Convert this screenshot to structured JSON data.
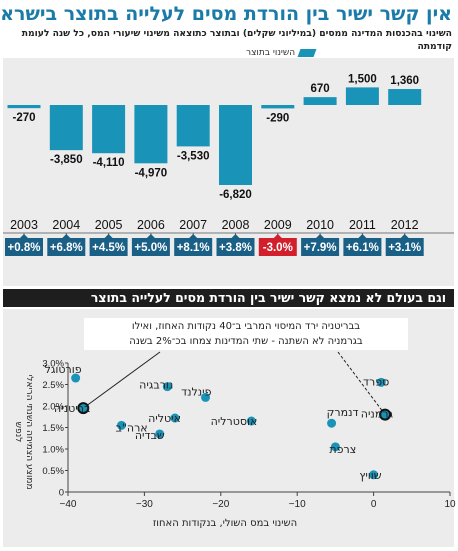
{
  "header": {
    "title": "אין קשר ישיר בין הורדת מסים לעלייה בתוצר בישראל",
    "subtitle": "השינוי בהכנסות המדינה ממסים (במיליוני שקלים) ובתוצר כתוצאה משינוי שיעורי המס, כל שנה לעומת קודמתה",
    "legend_label": "השינוי בתוצר"
  },
  "section2": {
    "banner": "וגם בעולם לא נמצא קשר ישיר בין הורדת מסים לעלייה בתוצר",
    "annotation_line1": "בבריטניה ירד המיסוי המרבי ב־40 נקודות האחוז, ואילו",
    "annotation_line2": "בגרמניה לא השתנה - שתי המדינות צמחו בכ־2% בשנה",
    "ylabel": "ממוצע הצמיחה השנתי הריאלי לנפש",
    "xlabel": "השינוי במס השולי, בנקודות האחוז"
  },
  "colors": {
    "bar": "#1993b8",
    "badge_positive": "#1a5f86",
    "badge_negative": "#d11f2c",
    "title": "#1a7aa8",
    "point": "#1993b8"
  },
  "chart_data": [
    {
      "type": "bar",
      "title": "השינוי בהכנסות המדינה ממסים (במיליוני שקלים)",
      "categories": [
        "2003",
        "2004",
        "2005",
        "2006",
        "2007",
        "2008",
        "2009",
        "2010",
        "2011",
        "2012"
      ],
      "values": [
        -270,
        -3850,
        -4110,
        -4970,
        -3530,
        -6820,
        -290,
        670,
        1500,
        1360
      ],
      "value_labels": [
        "-270",
        "-3,850",
        "-4,110",
        "-4,970",
        "-3,530",
        "-6,820",
        "-290",
        "670",
        "1,500",
        "1,360"
      ],
      "gdp_change_labels": [
        "+0.8%",
        "+6.8%",
        "+4.5%",
        "+5.0%",
        "+8.1%",
        "+3.8%",
        "-3.0%",
        "+7.9%",
        "+6.1%",
        "+3.1%"
      ],
      "gdp_change": [
        0.8,
        6.8,
        4.5,
        5.0,
        8.1,
        3.8,
        -3.0,
        7.9,
        6.1,
        3.1
      ],
      "ylim": [
        -7500,
        2000
      ]
    },
    {
      "type": "scatter",
      "xlabel": "השינוי במס השולי, בנקודות האחוז",
      "ylabel": "ממוצע הצמיחה השנתי הריאלי לנפש",
      "xlim": [
        -40,
        10
      ],
      "ylim": [
        0,
        3
      ],
      "x_ticks": [
        "−40",
        "−30",
        "−20",
        "−10",
        "0",
        "10"
      ],
      "y_ticks": [
        "0",
        "0.5%",
        "1.0%",
        "1.5%",
        "2.0%",
        "2.5%",
        "3.0%"
      ],
      "points": [
        {
          "name": "פורטוגל",
          "x": -39,
          "y": 2.65
        },
        {
          "name": "בריטניה",
          "x": -38,
          "y": 1.95,
          "highlight": true
        },
        {
          "name": "ארה\"ב",
          "x": -33,
          "y": 1.55
        },
        {
          "name": "נורבגיה",
          "x": -27,
          "y": 2.45
        },
        {
          "name": "איטליה",
          "x": -26,
          "y": 1.72
        },
        {
          "name": "שבדיה",
          "x": -28,
          "y": 1.35
        },
        {
          "name": "פינלנד",
          "x": -22,
          "y": 2.2
        },
        {
          "name": "אוסטרליה",
          "x": -16,
          "y": 1.65
        },
        {
          "name": "דנמרק",
          "x": -5.5,
          "y": 1.6
        },
        {
          "name": "צרפת",
          "x": -5,
          "y": 1.05
        },
        {
          "name": "ספרד",
          "x": 1,
          "y": 2.55
        },
        {
          "name": "גרמניה",
          "x": 1.5,
          "y": 1.8,
          "highlight": true
        },
        {
          "name": "שוויץ",
          "x": 0,
          "y": 0.4
        }
      ]
    }
  ]
}
